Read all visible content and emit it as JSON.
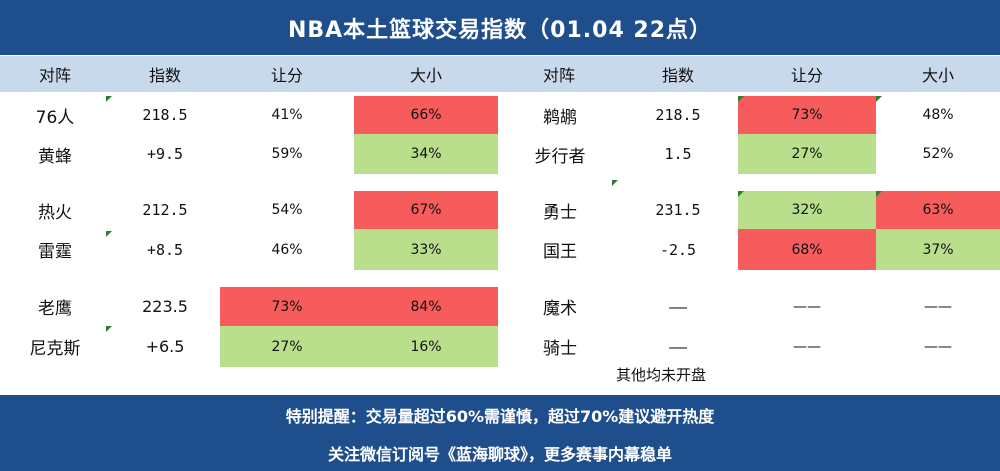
{
  "title": "NBA本土篮球交易指数（01.04 22点）",
  "headers": {
    "left": [
      "对阵",
      "指数",
      "让分",
      "大小"
    ],
    "right": [
      "对阵",
      "指数",
      "让分",
      "大小"
    ]
  },
  "left_games": [
    {
      "rows": [
        {
          "team": "76人",
          "index": "218.5",
          "spread": "41%",
          "total": "66%"
        },
        {
          "team": "黄蜂",
          "index": "+9.5",
          "spread": "59%",
          "total": "34%"
        }
      ]
    },
    {
      "rows": [
        {
          "team": "热火",
          "index": "212.5",
          "spread": "54%",
          "total": "67%"
        },
        {
          "team": "雷霆",
          "index": "+8.5",
          "spread": "46%",
          "total": "33%"
        }
      ]
    },
    {
      "rows": [
        {
          "team": "老鹰",
          "index": "223.5",
          "spread": "73%",
          "total": "84%"
        },
        {
          "team": "尼克斯",
          "index": "+6.5",
          "spread": "27%",
          "total": "16%"
        }
      ]
    }
  ],
  "right_games": [
    {
      "rows": [
        {
          "team": "鹈鹕",
          "index": "218.5",
          "spread": "73%",
          "total": "48%"
        },
        {
          "team": "步行者",
          "index": "1.5",
          "spread": "27%",
          "total": "52%"
        }
      ]
    },
    {
      "rows": [
        {
          "team": "勇士",
          "index": "231.5",
          "spread": "32%",
          "total": "63%"
        },
        {
          "team": "国王",
          "index": "-2.5",
          "spread": "68%",
          "total": "37%"
        }
      ]
    },
    {
      "rows": [
        {
          "team": "魔术",
          "index": "——",
          "spread": "——",
          "total": "——"
        },
        {
          "team": "骑士",
          "index": "——",
          "spread": "——",
          "total": "——"
        }
      ]
    }
  ],
  "note": "其他均未开盘",
  "footer": {
    "line1": "特别提醒：交易量超过60%需谨慎，超过70%建议避开热度",
    "line2": "关注微信订阅号《蓝海聊球》，更多赛事内幕稳单"
  },
  "colors": {
    "header_bg": "#1f4e8c",
    "subheader_bg": "#c9d9ec",
    "hot": "#f75c5c",
    "cool": "#b9df8c",
    "marker": "#2e7d32"
  }
}
